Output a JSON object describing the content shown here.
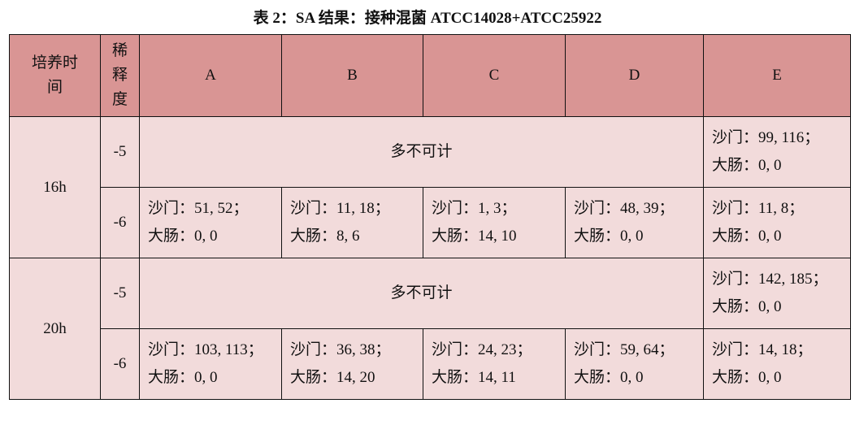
{
  "title": "表 2：SA 结果：接种混菌 ATCC14028+ATCC25922",
  "colors": {
    "header_bg": "#d99594",
    "body_bg": "#f2dbdb"
  },
  "headers": {
    "time": "培养时间",
    "dilution": "稀释度",
    "columns": [
      "A",
      "B",
      "C",
      "D",
      "E"
    ]
  },
  "rows": [
    {
      "time": "16h",
      "d5": {
        "dilution": "-5",
        "merged": "多不可计",
        "E": [
          "沙门：99, 116；",
          "大肠：0, 0"
        ]
      },
      "d6": {
        "dilution": "-6",
        "cells": [
          [
            "沙门：51, 52；",
            "大肠：0, 0"
          ],
          [
            "沙门：11, 18；",
            "大肠：8, 6"
          ],
          [
            "沙门：1, 3；",
            "大肠：14, 10"
          ],
          [
            "沙门：48, 39；",
            "大肠：0, 0"
          ],
          [
            "沙门：11, 8；",
            "大肠：0, 0"
          ]
        ]
      }
    },
    {
      "time": "20h",
      "d5": {
        "dilution": "-5",
        "merged": "多不可计",
        "E": [
          "沙门：142, 185；",
          "大肠：0, 0"
        ]
      },
      "d6": {
        "dilution": "-6",
        "cells": [
          [
            "沙门：103, 113；",
            "大肠：0, 0"
          ],
          [
            "沙门：36, 38；",
            "大肠：14, 20"
          ],
          [
            "沙门：24, 23；",
            "大肠：14, 11"
          ],
          [
            "沙门：59, 64；",
            "大肠：0, 0"
          ],
          [
            "沙门：14, 18；",
            "大肠：0, 0"
          ]
        ]
      }
    }
  ]
}
